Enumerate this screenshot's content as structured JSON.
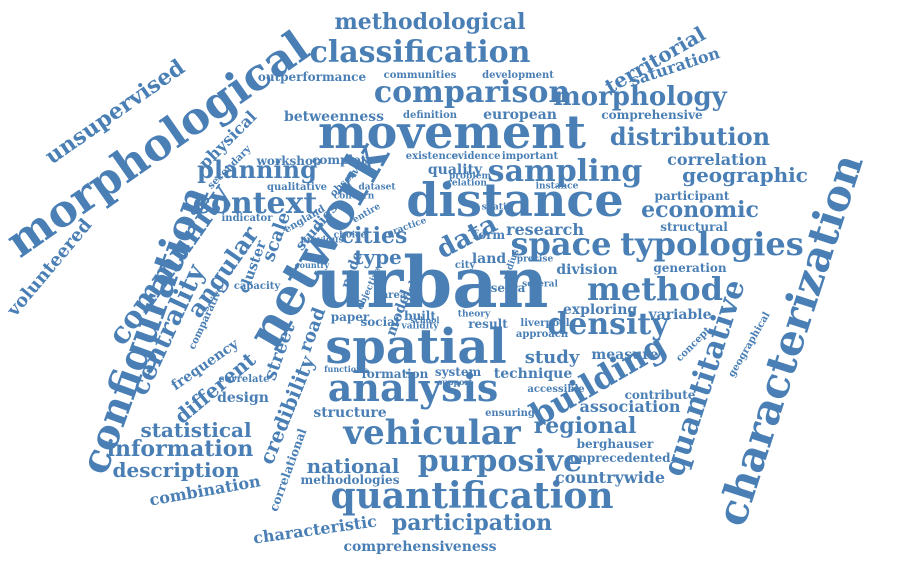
{
  "cloud": {
    "color": "#4a7fb5",
    "words": [
      "urban",
      "network",
      "movement",
      "distance",
      "spatial",
      "morphological",
      "characterization",
      "configuration",
      "analysis",
      "quantification",
      "vehicular",
      "purposive",
      "building",
      "method",
      "typologies",
      "space",
      "density",
      "context",
      "sampling",
      "comparison",
      "classification",
      "community",
      "quantitative",
      "centrality",
      "methodological",
      "morphology",
      "distribution",
      "planning",
      "data",
      "cities",
      "economic",
      "geographic",
      "angular",
      "unsupervised",
      "participation",
      "information",
      "statistical",
      "description",
      "different",
      "credibility",
      "regional",
      "national",
      "street",
      "road",
      "scale",
      "type",
      "research",
      "study",
      "association",
      "correlation",
      "territorial",
      "saturation",
      "combination",
      "comprehensiveness",
      "countrywide",
      "characteristic",
      "volunteered",
      "physical",
      "frequency",
      "design",
      "correlational",
      "methodologies",
      "structure",
      "measure",
      "technique",
      "formation",
      "system",
      "social",
      "paper",
      "result",
      "variable",
      "exploring",
      "division",
      "generation",
      "comprehensive",
      "betweenness",
      "european",
      "outperformance",
      "communities",
      "development",
      "definition",
      "workshop",
      "complete",
      "quality",
      "existence",
      "evidence",
      "important",
      "cluster",
      "studies",
      "node",
      "model",
      "field",
      "built",
      "land",
      "form",
      "city",
      "plot",
      "area",
      "capacity",
      "comparative",
      "correlate",
      "indicator",
      "england",
      "qualitative",
      "structural",
      "participant",
      "concept",
      "geographical",
      "contribute",
      "accessible",
      "ensuring",
      "berghauser",
      "unprecedented",
      "liverpool",
      "approach",
      "secondary",
      "serra",
      "country",
      "instance",
      "relation",
      "dataset",
      "practice",
      "objective",
      "validity",
      "function",
      "support",
      "theory",
      "several",
      "concern",
      "entire",
      "observed",
      "choice",
      "problem",
      "spatio",
      "previous",
      "school",
      "radius",
      "precise"
    ]
  }
}
